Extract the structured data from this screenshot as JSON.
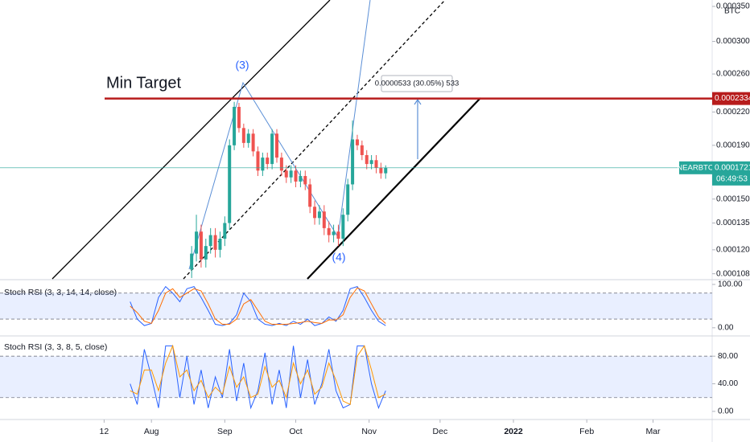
{
  "chart_data": [
    {
      "type": "candlestick",
      "axis_label": "BTC",
      "log_scale": true,
      "xlim": [
        -44,
        257
      ],
      "xticks": [
        {
          "value": 0,
          "label": "12"
        },
        {
          "value": 20,
          "label": "Aug"
        },
        {
          "value": 51,
          "label": "Sep"
        },
        {
          "value": 81,
          "label": "Oct"
        },
        {
          "value": 112,
          "label": "Nov"
        },
        {
          "value": 142,
          "label": "Dec"
        },
        {
          "value": 173,
          "label": "2022"
        },
        {
          "value": 204,
          "label": "Feb"
        },
        {
          "value": 232,
          "label": "Mar"
        }
      ],
      "ylim": [
        0.0001056,
        0.00036
      ],
      "yticks": [
        {
          "value": 0.00035,
          "label": "0.0003500"
        },
        {
          "value": 0.0003,
          "label": "0.0003000"
        },
        {
          "value": 0.00026,
          "label": "0.0002600"
        },
        {
          "value": 0.00022,
          "label": "0.0002200"
        },
        {
          "value": 0.00019,
          "label": "0.0001900"
        },
        {
          "value": 0.00015,
          "label": "0.0001500"
        },
        {
          "value": 0.000135,
          "label": "0.0001350"
        },
        {
          "value": 0.00012,
          "label": "0.0001200"
        },
        {
          "value": 0.000108,
          "label": "0.0001080"
        }
      ],
      "color_up": "#26a69a",
      "color_down": "#ef5350",
      "x": [
        37,
        39,
        41,
        43,
        45,
        47,
        49,
        51,
        53,
        55,
        57,
        59,
        61,
        63,
        65,
        67,
        69,
        71,
        73,
        75,
        77,
        79,
        81,
        83,
        85,
        87,
        89,
        91,
        93,
        95,
        97,
        99,
        101,
        103,
        105,
        107,
        109,
        111,
        113,
        115,
        117,
        119
      ],
      "open": [
        0.00011,
        0.000118,
        0.00013,
        0.000115,
        0.000122,
        0.000128,
        0.00012,
        0.000126,
        0.000135,
        0.00019,
        0.000225,
        0.000205,
        0.000192,
        0.0002,
        0.000185,
        0.00017,
        0.00018,
        0.000175,
        0.0002,
        0.00018,
        0.00017,
        0.000165,
        0.00017,
        0.000162,
        0.000166,
        0.00016,
        0.000145,
        0.000138,
        0.000142,
        0.000132,
        0.000128,
        0.00013,
        0.000126,
        0.00014,
        0.00016,
        0.000195,
        0.00019,
        0.000182,
        0.000175,
        0.000178,
        0.000172,
        0.000168
      ],
      "high": [
        0.000122,
        0.00014,
        0.000134,
        0.000126,
        0.000132,
        0.000132,
        0.00013,
        0.000139,
        0.000195,
        0.00023,
        0.000229,
        0.000209,
        0.000204,
        0.000204,
        0.000189,
        0.000184,
        0.000184,
        0.000204,
        0.000204,
        0.000184,
        0.000174,
        0.000174,
        0.000174,
        0.00017,
        0.00017,
        0.000164,
        0.000149,
        0.000146,
        0.000146,
        0.000136,
        0.000134,
        0.000134,
        0.000144,
        0.000164,
        0.000212,
        0.000199,
        0.000194,
        0.000186,
        0.000182,
        0.000182,
        0.000176,
        0.000174
      ],
      "low": [
        0.000106,
        0.000114,
        0.000111,
        0.000111,
        0.000118,
        0.000116,
        0.000116,
        0.000122,
        0.000131,
        0.000186,
        0.000201,
        0.000188,
        0.000188,
        0.000181,
        0.000166,
        0.000166,
        0.000171,
        0.000171,
        0.000176,
        0.000166,
        0.000161,
        0.000161,
        0.000158,
        0.000158,
        0.000156,
        0.000141,
        0.000134,
        0.000134,
        0.000128,
        0.000124,
        0.000124,
        0.000122,
        0.000122,
        0.000136,
        0.000156,
        0.000186,
        0.000178,
        0.000171,
        0.000171,
        0.000168,
        0.000164,
        0.000164
      ],
      "close": [
        0.000118,
        0.00013,
        0.000115,
        0.000122,
        0.000128,
        0.00012,
        0.000126,
        0.000135,
        0.00019,
        0.000225,
        0.000205,
        0.000192,
        0.0002,
        0.000185,
        0.00017,
        0.00018,
        0.000175,
        0.0002,
        0.00018,
        0.00017,
        0.000165,
        0.00017,
        0.000162,
        0.000166,
        0.00016,
        0.000145,
        0.000138,
        0.000142,
        0.000132,
        0.000128,
        0.00013,
        0.000126,
        0.00014,
        0.00016,
        0.000195,
        0.00019,
        0.000182,
        0.000175,
        0.000178,
        0.000172,
        0.000168,
        0.0001721
      ],
      "annotations": {
        "min_target": "Min Target",
        "wave_3": "(3)",
        "wave_4": "(4)",
        "measure": "0.0000533 (30.05%) 533"
      },
      "target_line": {
        "value": 0.0002334,
        "color": "#b71c1c"
      },
      "last_price": {
        "symbol": "NEARBTC",
        "value": 0.0001721,
        "countdown": "06:49:53",
        "color": "#26a69a"
      }
    },
    {
      "type": "line",
      "title": "Stoch RSI (3, 3, 14, 14, close)",
      "xlim": [
        -44,
        257
      ],
      "ylim": [
        -17,
        111
      ],
      "yticks": [
        {
          "value": 100,
          "label": "100.00"
        },
        {
          "value": 0,
          "label": "0.00"
        }
      ],
      "bands": [
        20,
        80
      ],
      "x": [
        11,
        14,
        17,
        20,
        23,
        26,
        29,
        32,
        35,
        38,
        41,
        44,
        47,
        50,
        53,
        56,
        59,
        62,
        65,
        68,
        71,
        74,
        77,
        80,
        83,
        86,
        89,
        92,
        95,
        98,
        101,
        104,
        107,
        110,
        113,
        116,
        119
      ],
      "series": [
        {
          "color": "#2962ff",
          "values": [
            60,
            20,
            5,
            10,
            70,
            95,
            80,
            60,
            90,
            95,
            70,
            40,
            8,
            5,
            10,
            30,
            80,
            60,
            20,
            8,
            5,
            10,
            5,
            15,
            8,
            20,
            5,
            10,
            25,
            15,
            40,
            90,
            95,
            70,
            40,
            15,
            5
          ]
        },
        {
          "color": "#ff6d00",
          "values": [
            50,
            35,
            15,
            10,
            40,
            80,
            90,
            70,
            80,
            90,
            85,
            55,
            20,
            8,
            8,
            20,
            55,
            65,
            40,
            15,
            8,
            8,
            8,
            10,
            12,
            15,
            12,
            10,
            18,
            18,
            30,
            70,
            92,
            85,
            55,
            25,
            10
          ]
        }
      ]
    },
    {
      "type": "line",
      "title": "Stoch RSI (3, 3, 8, 5, close)",
      "xlim": [
        -44,
        257
      ],
      "ylim": [
        -10.6,
        108.2
      ],
      "yticks": [
        {
          "value": 80,
          "label": "80.00"
        },
        {
          "value": 40,
          "label": "40.00"
        },
        {
          "value": 0,
          "label": "0.00"
        }
      ],
      "bands": [
        20,
        80
      ],
      "x": [
        11,
        14,
        17,
        20,
        23,
        26,
        29,
        32,
        35,
        38,
        41,
        44,
        47,
        50,
        53,
        56,
        59,
        62,
        65,
        68,
        71,
        74,
        77,
        80,
        83,
        86,
        89,
        92,
        95,
        98,
        101,
        104,
        107,
        110,
        113,
        116,
        119
      ],
      "series": [
        {
          "color": "#2962ff",
          "values": [
            40,
            10,
            90,
            50,
            5,
            95,
            95,
            20,
            80,
            10,
            60,
            5,
            50,
            20,
            90,
            15,
            70,
            5,
            30,
            85,
            10,
            60,
            5,
            95,
            20,
            75,
            10,
            40,
            90,
            30,
            5,
            10,
            95,
            95,
            40,
            5,
            30
          ]
        },
        {
          "color": "#ff9800",
          "values": [
            30,
            25,
            60,
            60,
            30,
            70,
            95,
            50,
            60,
            30,
            45,
            20,
            35,
            25,
            65,
            35,
            50,
            20,
            25,
            65,
            35,
            45,
            20,
            70,
            40,
            60,
            25,
            35,
            70,
            45,
            15,
            10,
            80,
            95,
            60,
            20,
            25
          ]
        }
      ]
    }
  ]
}
